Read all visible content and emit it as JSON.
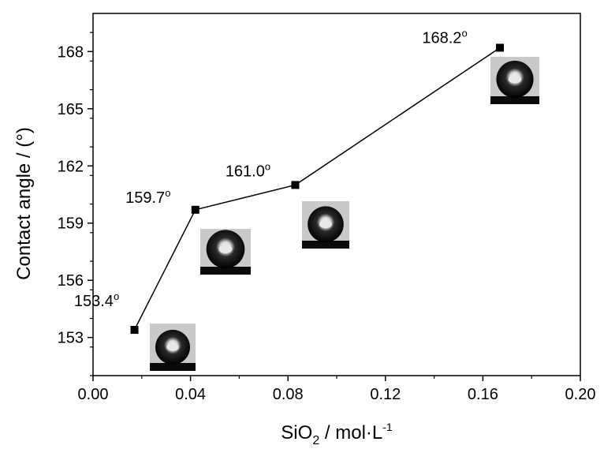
{
  "chart_data": {
    "type": "line",
    "xlabel": {
      "main": "SiO",
      "sub": "2",
      "mid": " / mol·L",
      "sup": "-1"
    },
    "ylabel": "Contact angle / (°)",
    "xlim": [
      0.0,
      0.2
    ],
    "ylim": [
      151.0,
      170.0
    ],
    "x_ticks": [
      0.0,
      0.04,
      0.08,
      0.12,
      0.16,
      0.2
    ],
    "x_tick_labels": [
      "0.00",
      "0.04",
      "0.08",
      "0.12",
      "0.16",
      "0.20"
    ],
    "y_ticks": [
      153,
      156,
      159,
      162,
      165,
      168
    ],
    "y_tick_labels": [
      "153",
      "156",
      "159",
      "162",
      "165",
      "168"
    ],
    "grid": false,
    "series": [
      {
        "x": [
          0.017,
          0.042,
          0.083,
          0.167
        ],
        "y": [
          153.4,
          159.7,
          161.0,
          168.2
        ],
        "labels": [
          "153.4",
          "159.7",
          "161.0",
          "168.2"
        ],
        "label_suffix": "o",
        "color": "#000000",
        "marker": "square"
      }
    ],
    "insets": [
      {
        "name": "droplet-image-1",
        "depicts": "water droplet on surface"
      },
      {
        "name": "droplet-image-2",
        "depicts": "water droplet on surface"
      },
      {
        "name": "droplet-image-3",
        "depicts": "water droplet on surface"
      },
      {
        "name": "droplet-image-4",
        "depicts": "water droplet on surface"
      }
    ]
  }
}
